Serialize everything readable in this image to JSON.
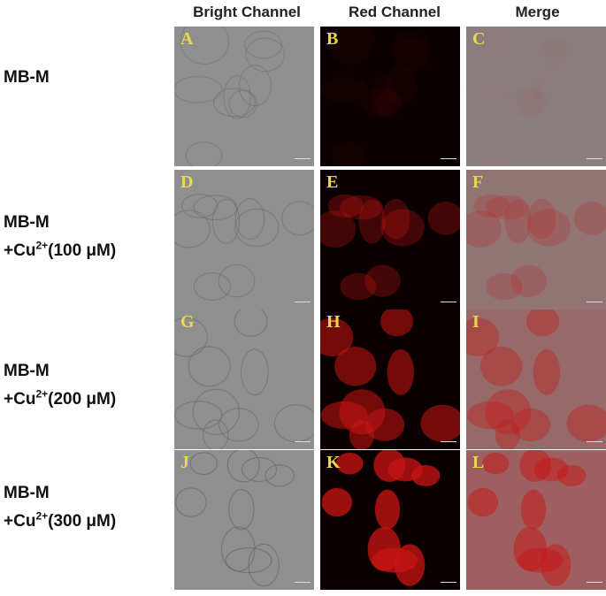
{
  "columns": [
    "Bright Channel",
    "Red Channel",
    "Merge"
  ],
  "rows": [
    {
      "label_main": "MB-M",
      "label_ion": "",
      "label_charge": "",
      "label_conc": "",
      "panels": [
        "A",
        "B",
        "C"
      ],
      "red_intensity": 0.05
    },
    {
      "label_main": "MB-M",
      "label_ion": "+Cu",
      "label_charge": "2+",
      "label_conc": "(100 μM)",
      "panels": [
        "D",
        "E",
        "F"
      ],
      "red_intensity": 0.35
    },
    {
      "label_main": "MB-M",
      "label_ion": "+Cu",
      "label_charge": "2+",
      "label_conc": "(200 μM)",
      "panels": [
        "G",
        "H",
        "I"
      ],
      "red_intensity": 0.65
    },
    {
      "label_main": "MB-M",
      "label_ion": "+Cu",
      "label_charge": "2+",
      "label_conc": "(300 μM)",
      "panels": [
        "J",
        "K",
        "L"
      ],
      "red_intensity": 0.9
    }
  ],
  "colors": {
    "panel_letter": "#e8d84a",
    "bright_bg": "#8f8f8f",
    "red_dark": "#0a0000",
    "red_signal": "#c81414"
  }
}
